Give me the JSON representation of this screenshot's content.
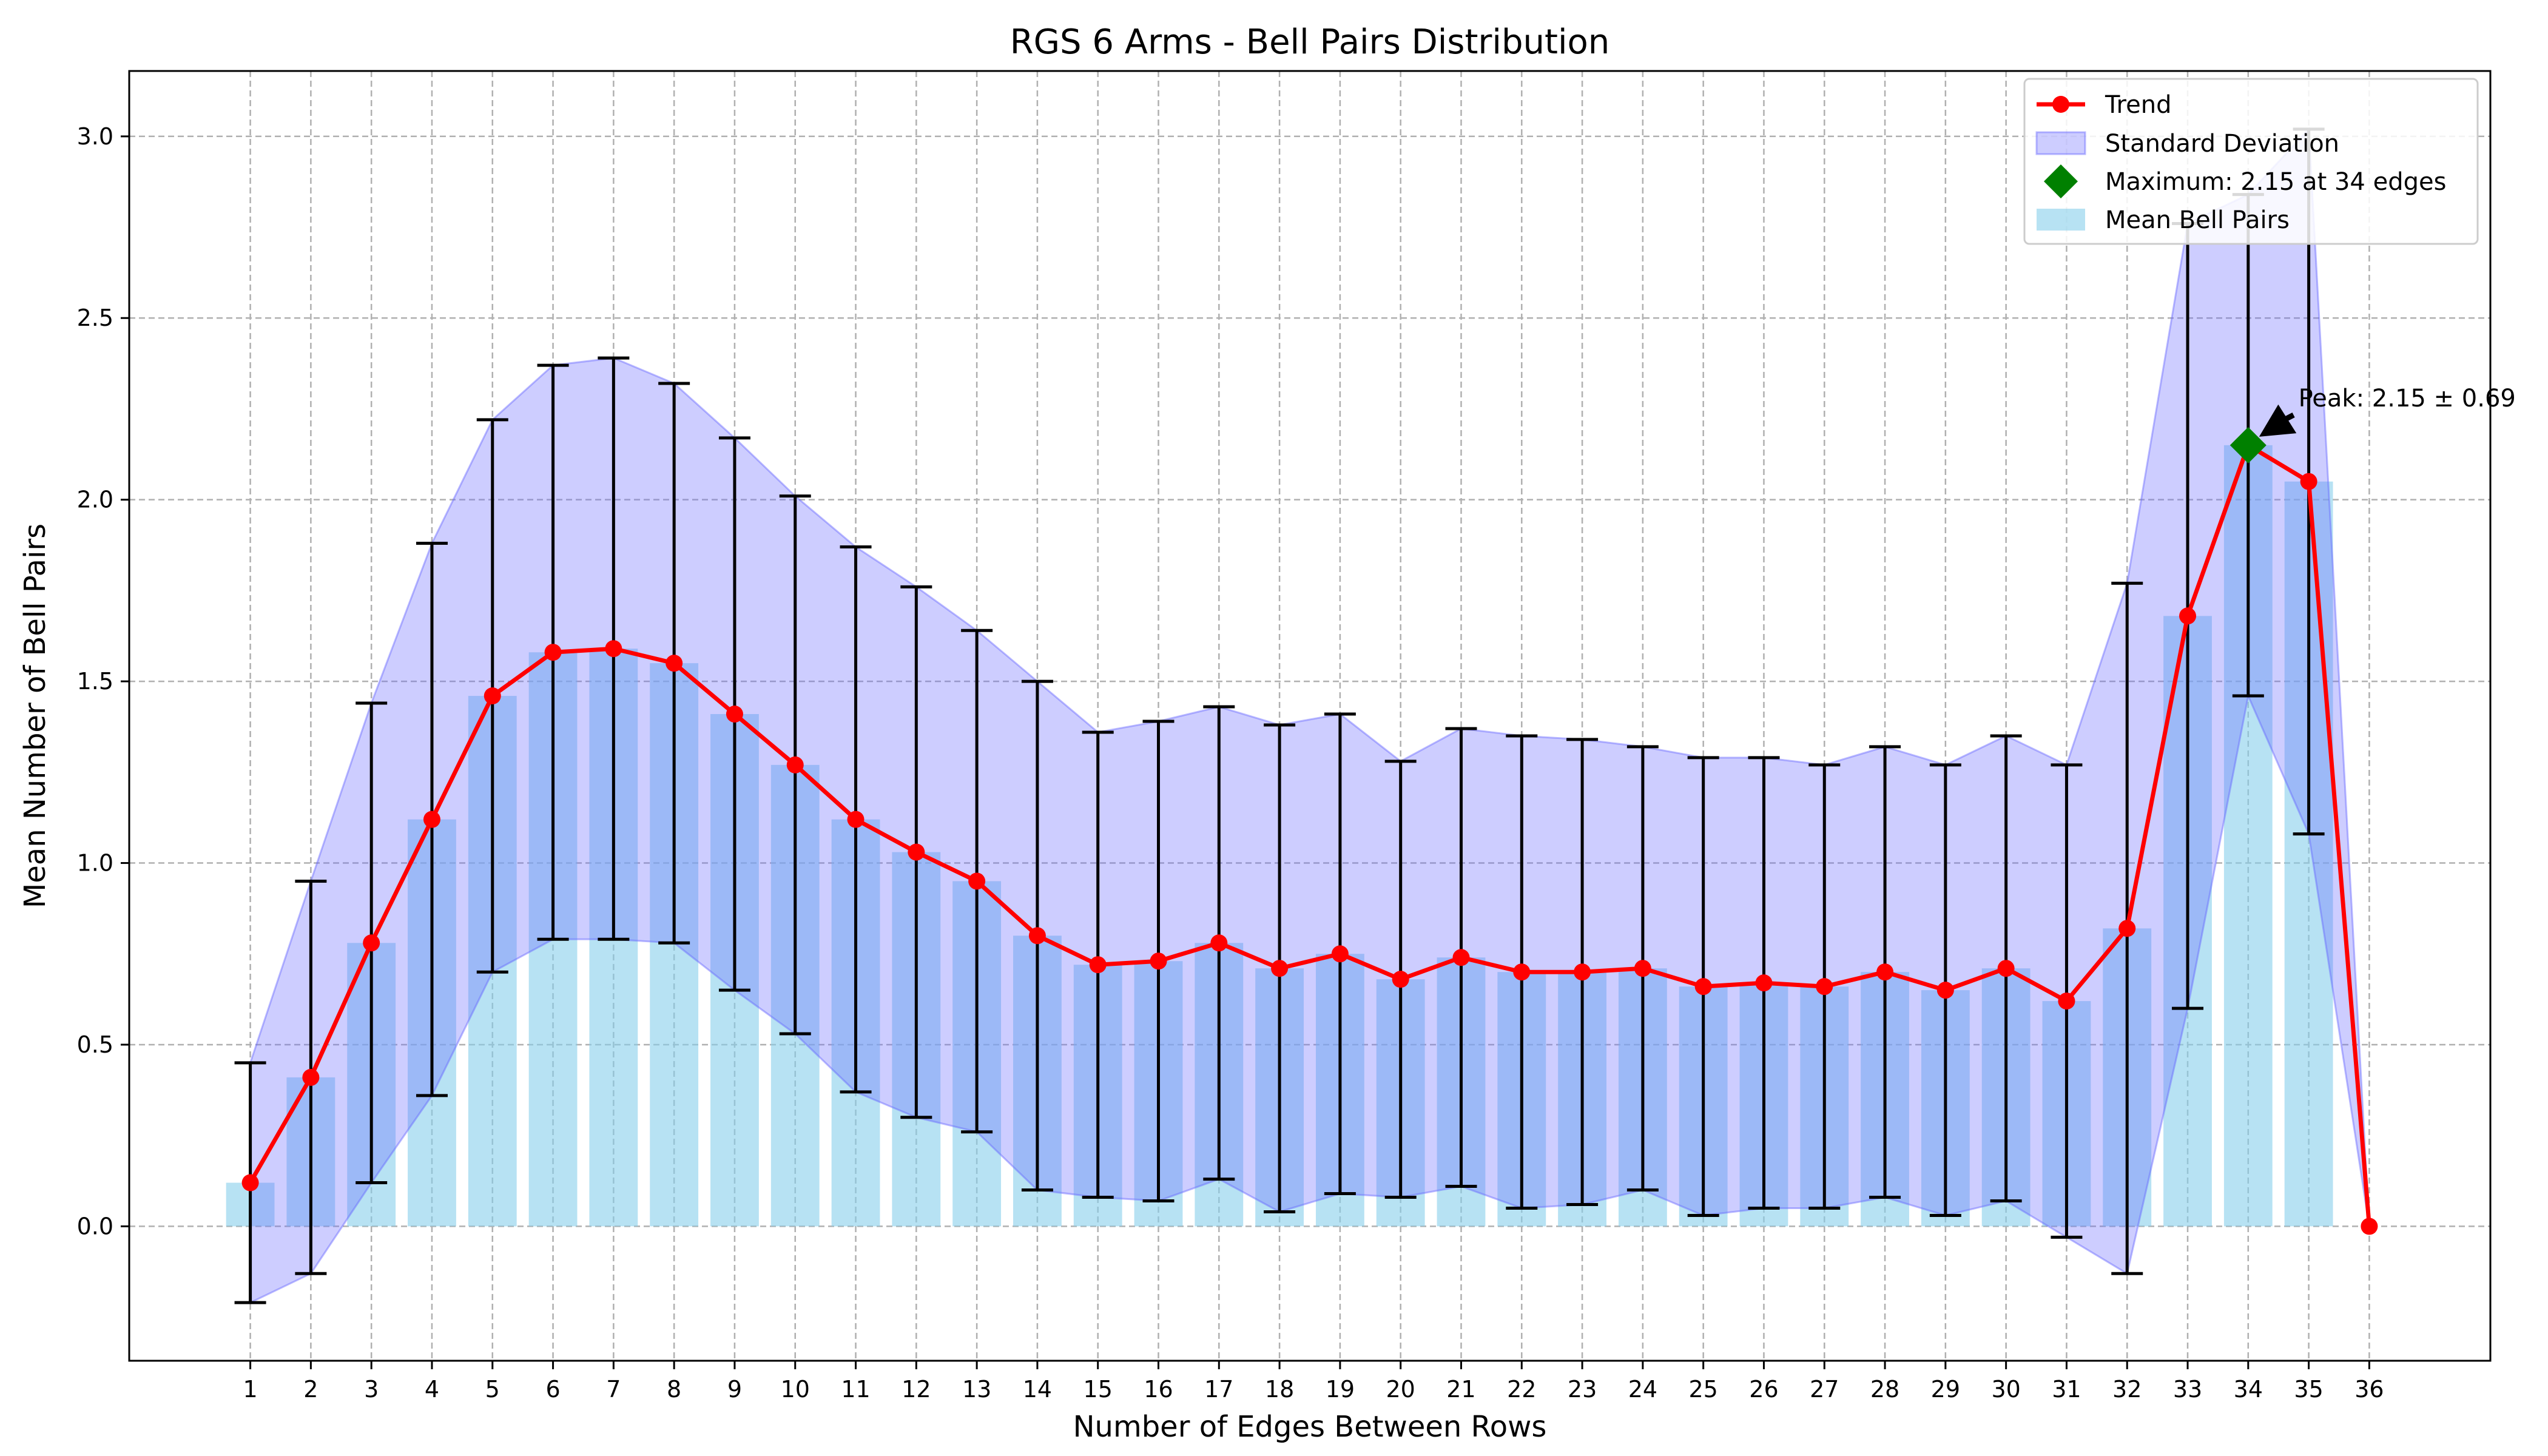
{
  "chart_data": {
    "type": "bar",
    "title": "RGS 6 Arms - Bell Pairs Distribution",
    "xlabel": "Number of Edges Between Rows",
    "ylabel": "Mean Number of Bell Pairs",
    "categories": [
      1,
      2,
      3,
      4,
      5,
      6,
      7,
      8,
      9,
      10,
      11,
      12,
      13,
      14,
      15,
      16,
      17,
      18,
      19,
      20,
      21,
      22,
      23,
      24,
      25,
      26,
      27,
      28,
      29,
      30,
      31,
      32,
      33,
      34,
      35,
      36
    ],
    "xlim": [
      -1,
      38
    ],
    "ylim": [
      -0.37,
      3.18
    ],
    "yticks": [
      0.0,
      0.5,
      1.0,
      1.5,
      2.0,
      2.5,
      3.0
    ],
    "ytick_labels": [
      "0.0",
      "0.5",
      "1.0",
      "1.5",
      "2.0",
      "2.5",
      "3.0"
    ],
    "grid": true,
    "legend_position": "top-right",
    "series": [
      {
        "name": "Mean Bell Pairs",
        "kind": "bar",
        "color": "#87ceeb",
        "values": [
          0.12,
          0.41,
          0.78,
          1.12,
          1.46,
          1.58,
          1.59,
          1.55,
          1.41,
          1.27,
          1.12,
          1.03,
          0.95,
          0.8,
          0.72,
          0.73,
          0.78,
          0.71,
          0.75,
          0.68,
          0.74,
          0.7,
          0.7,
          0.71,
          0.66,
          0.67,
          0.66,
          0.7,
          0.65,
          0.71,
          0.62,
          0.82,
          1.68,
          2.15,
          2.05,
          0.0
        ]
      },
      {
        "name": "Trend",
        "kind": "line",
        "color": "#ff0000",
        "values": [
          0.12,
          0.41,
          0.78,
          1.12,
          1.46,
          1.58,
          1.59,
          1.55,
          1.41,
          1.27,
          1.12,
          1.03,
          0.95,
          0.8,
          0.72,
          0.73,
          0.78,
          0.71,
          0.75,
          0.68,
          0.74,
          0.7,
          0.7,
          0.71,
          0.66,
          0.67,
          0.66,
          0.7,
          0.65,
          0.71,
          0.62,
          0.82,
          1.68,
          2.15,
          2.05,
          0.0
        ]
      },
      {
        "name": "Standard Deviation",
        "kind": "band",
        "color": "#6666ff",
        "values": [
          0.33,
          0.54,
          0.66,
          0.76,
          0.76,
          0.79,
          0.8,
          0.77,
          0.76,
          0.74,
          0.75,
          0.73,
          0.69,
          0.7,
          0.64,
          0.66,
          0.65,
          0.67,
          0.66,
          0.6,
          0.63,
          0.65,
          0.64,
          0.61,
          0.63,
          0.62,
          0.61,
          0.62,
          0.62,
          0.64,
          0.65,
          0.95,
          1.08,
          0.69,
          0.97,
          0.0
        ]
      }
    ],
    "maximum": {
      "label": "Maximum: 2.15 at 34 edges",
      "x": 34,
      "y": 2.15,
      "color": "#008000"
    },
    "annotation": {
      "text": "Peak: 2.15 ± 0.69",
      "x": 34,
      "y": 2.15,
      "text_x": 35,
      "text_y": 2.25
    }
  }
}
